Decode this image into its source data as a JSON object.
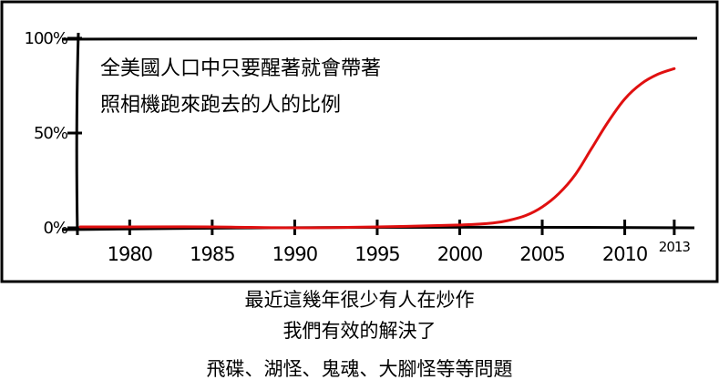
{
  "chart_data": {
    "type": "line",
    "title_lines": [
      "全美國人口中只要醒著就會帶著",
      "照相機跑來跑去的人的比例"
    ],
    "xlabel": "",
    "ylabel": "",
    "x_ticks": [
      "1980",
      "1985",
      "1990",
      "1995",
      "2000",
      "2005",
      "2010",
      "2013"
    ],
    "y_ticks": [
      "0%",
      "50%",
      "100%"
    ],
    "xlim": [
      1977,
      2014
    ],
    "ylim": [
      0,
      100
    ],
    "series": [
      {
        "name": "proportion",
        "color": "#e01010",
        "x": [
          1977,
          1980,
          1985,
          1990,
          1995,
          2000,
          2002,
          2003,
          2004,
          2005,
          2006,
          2007,
          2008,
          2009,
          2010,
          2011,
          2012,
          2013
        ],
        "values": [
          0.5,
          0.5,
          0.5,
          0,
          0.5,
          1.5,
          2.5,
          4,
          6.5,
          11,
          18,
          28,
          42,
          56,
          68,
          76,
          81,
          84
        ]
      }
    ]
  },
  "caption": {
    "line1": "最近這幾年很少有人在炒作",
    "line2": "我們有效的解決了",
    "line3": "飛碟、湖怪、鬼魂、大腳怪等等問題"
  },
  "colors": {
    "line": "#e01010",
    "ink": "#000000"
  }
}
